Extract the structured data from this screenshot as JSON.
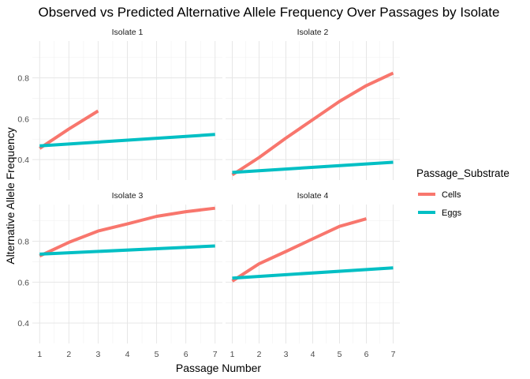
{
  "chart_data": {
    "type": "line",
    "title": "Observed vs Predicted Alternative Allele Frequency Over Passages by Isolate",
    "xlabel": "Passage Number",
    "ylabel": "Alternative Allele Frequency",
    "xlim": [
      1,
      7
    ],
    "ylim": [
      0.3,
      0.98
    ],
    "x_ticks": [
      "1",
      "2",
      "3",
      "4",
      "5",
      "6",
      "7"
    ],
    "y_ticks": [
      {
        "value": 0.4,
        "label": "0.4"
      },
      {
        "value": 0.6,
        "label": "0.6"
      },
      {
        "value": 0.8,
        "label": "0.8"
      }
    ],
    "grid": true,
    "legend": {
      "title": "Passage_Substrate",
      "placement": "right",
      "entries": [
        {
          "name": "Cells",
          "color": "#F8766D"
        },
        {
          "name": "Eggs",
          "color": "#00BFC4"
        }
      ]
    },
    "facets": [
      {
        "label": "Isolate 1",
        "series": [
          {
            "name": "Cells",
            "color": "#F8766D",
            "x": [
              1,
              2,
              3
            ],
            "y": [
              0.455,
              0.55,
              0.638
            ]
          },
          {
            "name": "Eggs",
            "color": "#00BFC4",
            "x": [
              1,
              7
            ],
            "y": [
              0.467,
              0.523
            ]
          }
        ]
      },
      {
        "label": "Isolate 2",
        "series": [
          {
            "name": "Cells",
            "color": "#F8766D",
            "x": [
              1,
              2,
              3,
              4,
              5,
              6,
              7
            ],
            "y": [
              0.325,
              0.41,
              0.505,
              0.595,
              0.685,
              0.762,
              0.823
            ]
          },
          {
            "name": "Eggs",
            "color": "#00BFC4",
            "x": [
              1,
              7
            ],
            "y": [
              0.337,
              0.387
            ]
          }
        ]
      },
      {
        "label": "Isolate 3",
        "series": [
          {
            "name": "Cells",
            "color": "#F8766D",
            "x": [
              1,
              2,
              3,
              4,
              5,
              6,
              7
            ],
            "y": [
              0.728,
              0.795,
              0.85,
              0.885,
              0.922,
              0.945,
              0.962
            ]
          },
          {
            "name": "Eggs",
            "color": "#00BFC4",
            "x": [
              1,
              7
            ],
            "y": [
              0.737,
              0.777
            ]
          }
        ]
      },
      {
        "label": "Isolate 4",
        "series": [
          {
            "name": "Cells",
            "color": "#F8766D",
            "x": [
              1,
              2,
              3,
              4,
              5,
              6
            ],
            "y": [
              0.605,
              0.69,
              0.75,
              0.812,
              0.873,
              0.91
            ]
          },
          {
            "name": "Eggs",
            "color": "#00BFC4",
            "x": [
              1,
              7
            ],
            "y": [
              0.62,
              0.67
            ]
          }
        ]
      }
    ]
  }
}
